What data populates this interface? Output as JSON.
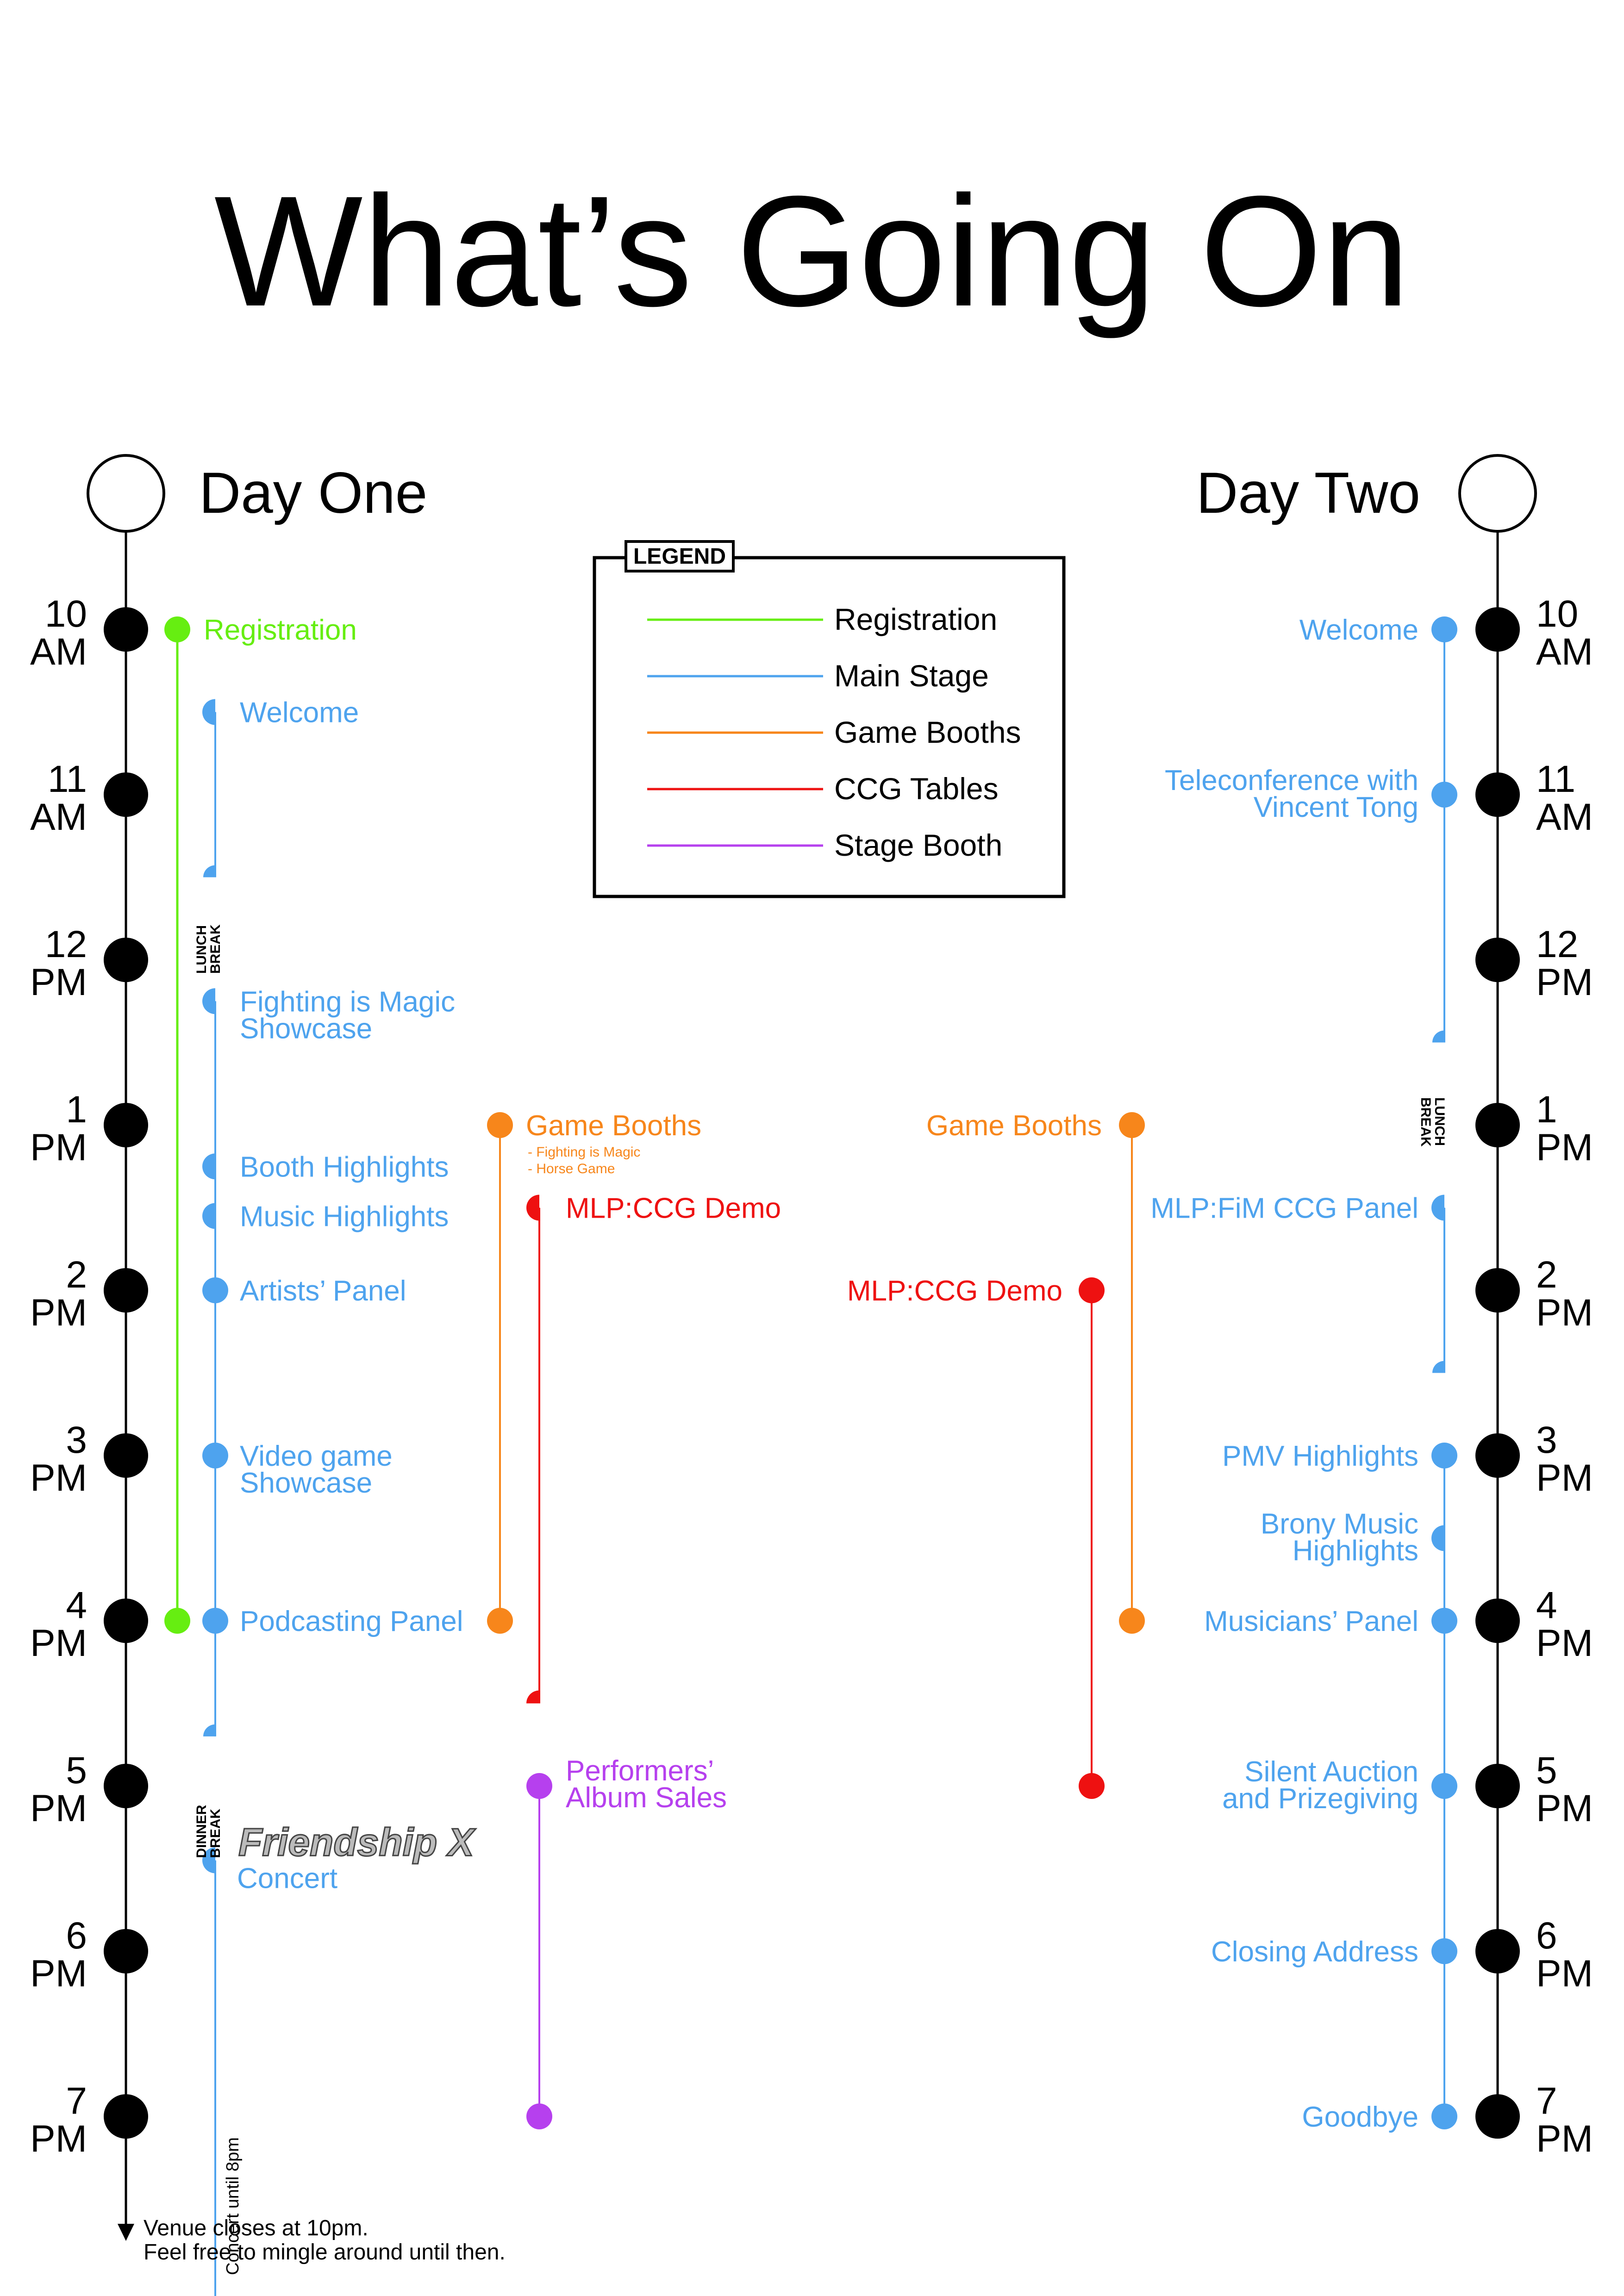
{
  "title": "What’s Going On",
  "colors": {
    "registration": "#66ee11",
    "main_stage": "#4ea3ee",
    "game_booths": "#f7861b",
    "ccg_tables": "#ee1111",
    "stage_booth": "#b640ee",
    "axis": "#000000"
  },
  "legend": {
    "label": "LEGEND",
    "items": [
      {
        "label": "Registration",
        "color_key": "registration"
      },
      {
        "label": "Main Stage",
        "color_key": "main_stage"
      },
      {
        "label": "Game Booths",
        "color_key": "game_booths"
      },
      {
        "label": "CCG Tables",
        "color_key": "ccg_tables"
      },
      {
        "label": "Stage Booth",
        "color_key": "stage_booth"
      }
    ]
  },
  "hours": [
    {
      "h": 10,
      "num": "10",
      "ampm": "AM"
    },
    {
      "h": 11,
      "num": "11",
      "ampm": "AM"
    },
    {
      "h": 12,
      "num": "12",
      "ampm": "PM"
    },
    {
      "h": 13,
      "num": "1",
      "ampm": "PM"
    },
    {
      "h": 14,
      "num": "2",
      "ampm": "PM"
    },
    {
      "h": 15,
      "num": "3",
      "ampm": "PM"
    },
    {
      "h": 16,
      "num": "4",
      "ampm": "PM"
    },
    {
      "h": 17,
      "num": "5",
      "ampm": "PM"
    },
    {
      "h": 18,
      "num": "6",
      "ampm": "PM"
    },
    {
      "h": 19,
      "num": "7",
      "ampm": "PM"
    }
  ],
  "day_one": {
    "label": "Day One",
    "registration": {
      "start": 10,
      "end": 16,
      "label": "Registration"
    },
    "main_stage": {
      "events": [
        {
          "time": 10.5,
          "label": "Welcome",
          "marker": "start"
        },
        {
          "time": 12.25,
          "label": "Fighting is Magic\nShowcase",
          "marker": "start"
        },
        {
          "time": 13.25,
          "label": "Booth Highlights",
          "marker": "start"
        },
        {
          "time": 13.55,
          "label": "Music Highlights",
          "marker": "start"
        },
        {
          "time": 14,
          "label": "Artists’ Panel",
          "marker": "dot"
        },
        {
          "time": 15,
          "label": "Video game\nShowcase",
          "marker": "dot"
        },
        {
          "time": 16,
          "label": "Podcasting Panel",
          "marker": "dot"
        },
        {
          "time": 17.45,
          "label": "Concert",
          "marker": "start"
        }
      ],
      "segment_ends": [
        11.5,
        16.7
      ],
      "line_end": 20.5
    },
    "lunch_break": {
      "label": "LUNCH\nBREAK",
      "time": 12
    },
    "dinner_break": {
      "label": "DINNER\nBREAK",
      "time": 17.1
    },
    "concert_act": "Friendship X",
    "concert_note": "Concert until 8pm",
    "game_booths": {
      "start": 13,
      "end": 16,
      "label": "Game Booths",
      "sublabels": [
        "- Fighting is Magic",
        "- Horse Game"
      ]
    },
    "ccg": {
      "start": 13.5,
      "end": 16.5,
      "label": "MLP:CCG Demo"
    },
    "stage_booth": {
      "start": 17,
      "end": 19,
      "label": "Performers’\nAlbum Sales"
    },
    "footer": "Venue closes at 10pm.\nFeel free to mingle around until then."
  },
  "day_two": {
    "label": "Day Two",
    "main_stage": {
      "events": [
        {
          "time": 10,
          "label": "Welcome",
          "marker": "dot"
        },
        {
          "time": 11,
          "label": "Teleconference with\nVincent Tong",
          "marker": "dot"
        },
        {
          "time": 13.5,
          "label": "MLP:FiM CCG Panel",
          "marker": "start"
        },
        {
          "time": 15,
          "label": "PMV Highlights",
          "marker": "dot"
        },
        {
          "time": 15.5,
          "label": "Brony Music\nHighlights",
          "marker": "start"
        },
        {
          "time": 16,
          "label": "Musicians’ Panel",
          "marker": "dot"
        },
        {
          "time": 17,
          "label": "Silent Auction\nand Prizegiving",
          "marker": "dot"
        },
        {
          "time": 18,
          "label": "Closing Address",
          "marker": "dot"
        },
        {
          "time": 19,
          "label": "Goodbye",
          "marker": "dot"
        }
      ],
      "segment_ends": [
        12.5,
        14.5
      ]
    },
    "lunch_break": {
      "label": "LUNCH\nBREAK",
      "time": 13
    },
    "game_booths": {
      "start": 13,
      "end": 16,
      "label": "Game Booths"
    },
    "ccg": {
      "start": 14,
      "end": 17,
      "label": "MLP:CCG Demo"
    }
  }
}
